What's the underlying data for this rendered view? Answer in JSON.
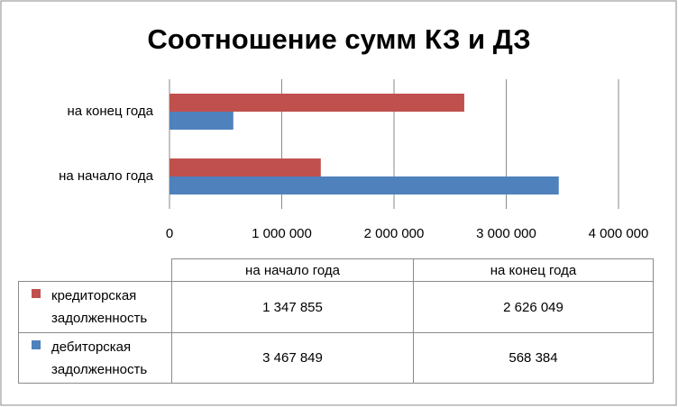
{
  "chart_data": {
    "type": "bar",
    "orientation": "horizontal",
    "title": "Соотношение сумм КЗ и ДЗ",
    "categories": [
      "на начало года",
      "на конец года"
    ],
    "series": [
      {
        "name": "кредиторская задолженность",
        "color": "#c0504d",
        "values": [
          1347855,
          2626049
        ],
        "value_labels": [
          "1 347 855",
          "2 626 049"
        ]
      },
      {
        "name": "дебиторская задолженность",
        "color": "#4f81bd",
        "values": [
          3467849,
          568384
        ],
        "value_labels": [
          "3 467 849",
          "568 384"
        ]
      }
    ],
    "xlim": [
      0,
      4000000
    ],
    "xticks": [
      0,
      {
        "value": 1000000,
        "label": "1 000 000"
      },
      {
        "value": 2000000,
        "label": "2 000 000"
      },
      {
        "value": 3000000,
        "label": "3 000 000"
      },
      {
        "value": 4000000,
        "label": "4 000 000"
      }
    ],
    "grid": true
  }
}
